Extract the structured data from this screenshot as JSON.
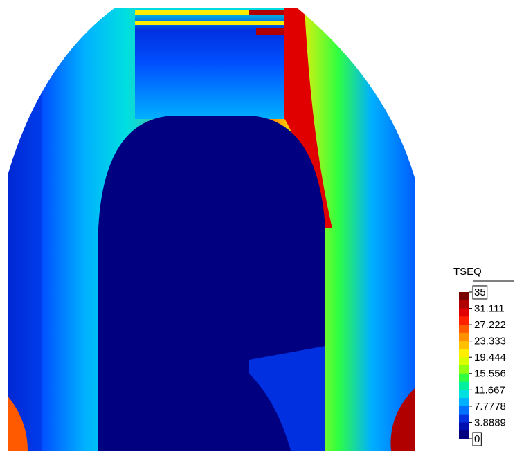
{
  "legend": {
    "title": "TSEQ",
    "ticks": [
      35,
      31.111,
      27.222,
      23.333,
      19.444,
      15.556,
      11.667,
      7.7778,
      3.8889,
      0
    ],
    "colors": [
      "#7a0000",
      "#b00000",
      "#e00000",
      "#ff2000",
      "#ff5a00",
      "#ff9000",
      "#ffc000",
      "#ffee00",
      "#d8ff00",
      "#90ff10",
      "#30ff40",
      "#00f0a0",
      "#00e0e0",
      "#00b0ff",
      "#0070ff",
      "#0030e0",
      "#0010b0",
      "#000080"
    ]
  }
}
